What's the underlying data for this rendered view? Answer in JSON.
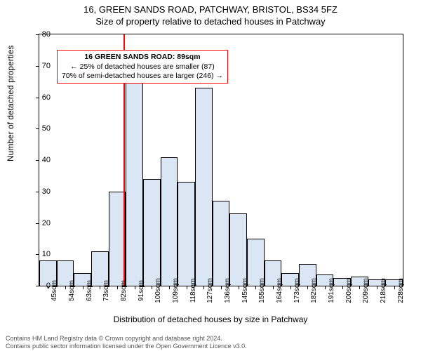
{
  "titles": {
    "line1": "16, GREEN SANDS ROAD, PATCHWAY, BRISTOL, BS34 5FZ",
    "line2": "Size of property relative to detached houses in Patchway"
  },
  "ylabel": "Number of detached properties",
  "xlabel": "Distribution of detached houses by size in Patchway",
  "footer": {
    "line1": "Contains HM Land Registry data © Crown copyright and database right 2024.",
    "line2": "Contains public sector information licensed under the Open Government Licence v3.0."
  },
  "chart": {
    "type": "histogram",
    "ylim": [
      0,
      80
    ],
    "yticks": [
      0,
      10,
      20,
      30,
      40,
      50,
      60,
      70,
      80
    ],
    "xticks_labels": [
      "45sqm",
      "54sqm",
      "63sqm",
      "73sqm",
      "82sqm",
      "91sqm",
      "100sqm",
      "109sqm",
      "118sqm",
      "127sqm",
      "136sqm",
      "145sqm",
      "155sqm",
      "164sqm",
      "173sqm",
      "182sqm",
      "191sqm",
      "200sqm",
      "209sqm",
      "218sqm",
      "228sqm"
    ],
    "values": [
      8,
      8,
      4,
      11,
      30,
      66,
      34,
      41,
      33,
      63,
      27,
      23,
      15,
      8,
      4,
      7,
      3.5,
      2.5,
      3,
      2,
      2
    ],
    "bar_fill": "#dbe6f4",
    "bar_stroke": "#000000",
    "marker": {
      "position_index": 4.85,
      "color": "#ff0000",
      "height_value": 80
    },
    "infobox": {
      "border_color": "#ff0000",
      "lines": [
        "16 GREEN SANDS ROAD: 89sqm",
        "← 25% of detached houses are smaller (87)",
        "70% of semi-detached houses are larger (246) →"
      ],
      "bold_first": true
    }
  },
  "colors": {
    "axis": "#000000",
    "background": "#ffffff"
  }
}
